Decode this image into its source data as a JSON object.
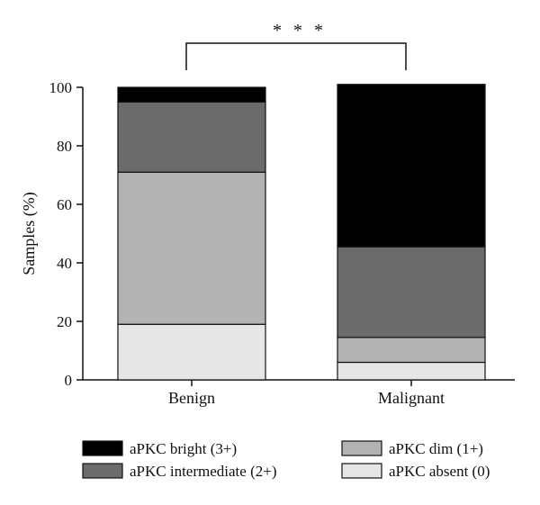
{
  "chart_data": {
    "type": "bar",
    "stacked": true,
    "categories": [
      "Benign",
      "Malignant"
    ],
    "series": [
      {
        "name": "aPKC absent (0)",
        "color": "#e6e6e6",
        "values": [
          19,
          6
        ]
      },
      {
        "name": "aPKC dim (1+)",
        "color": "#b3b3b3",
        "values": [
          52,
          8.5
        ]
      },
      {
        "name": "aPKC intermediate (2+)",
        "color": "#6b6b6b",
        "values": [
          24,
          31
        ]
      },
      {
        "name": "aPKC bright (3+)",
        "color": "#000000",
        "values": [
          5,
          55.5
        ]
      }
    ],
    "ylabel": "Samples (%)",
    "xlabel": "",
    "ylim": [
      0,
      100
    ],
    "yticks": [
      0,
      20,
      40,
      60,
      80,
      100
    ],
    "significance": "* * *",
    "grid": false,
    "legend_position": "bottom"
  }
}
